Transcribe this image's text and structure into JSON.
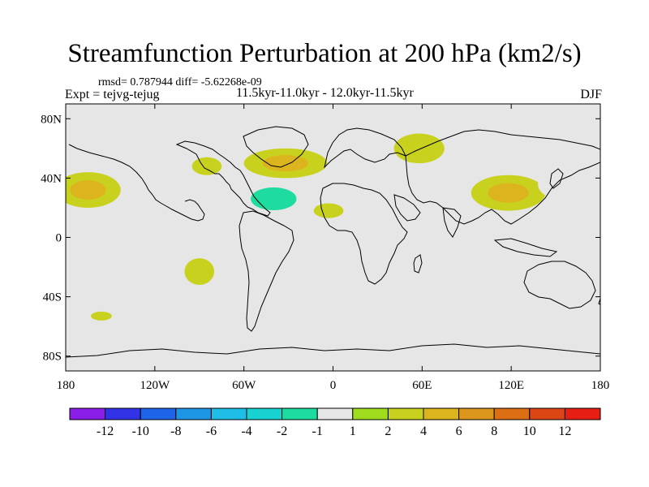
{
  "title": "Streamfunction Perturbation at 200 hPa (km2/s)",
  "subtitle_left": "rmsd= 0.787944 diff= -5.62268e-09",
  "subtitle_center": "11.5kyr-11.0kyr - 12.0kyr-11.5kyr",
  "experiment": "Expt = tejvg-tejug",
  "season": "DJF",
  "colors": {
    "ocean_background": "#e6e6e6",
    "coastline": "#000000"
  },
  "chart_data": {
    "type": "heatmap",
    "title": "Streamfunction Perturbation at 200 hPa (km2/s)",
    "projection": "cylindrical equidistant",
    "lon_range": [
      -180,
      180
    ],
    "lat_range": [
      -90,
      90
    ],
    "x_ticks": [
      {
        "value": -180,
        "label": "180"
      },
      {
        "value": -120,
        "label": "120W"
      },
      {
        "value": -60,
        "label": "60W"
      },
      {
        "value": 0,
        "label": "0"
      },
      {
        "value": 60,
        "label": "60E"
      },
      {
        "value": 120,
        "label": "120E"
      },
      {
        "value": 180,
        "label": "180"
      }
    ],
    "y_ticks": [
      {
        "value": 80,
        "label": "80N"
      },
      {
        "value": 40,
        "label": "40N"
      },
      {
        "value": 0,
        "label": "0"
      },
      {
        "value": -40,
        "label": "40S"
      },
      {
        "value": -80,
        "label": "80S"
      }
    ],
    "colorbar": {
      "colors": [
        "#8a1ee6",
        "#3232e6",
        "#1e64e6",
        "#1e96e6",
        "#1ebee6",
        "#18d2d2",
        "#1edca0",
        "#e6e6e6",
        "#a0dc1e",
        "#c8d21e",
        "#dcb41e",
        "#dc961e",
        "#dc6e14",
        "#dc4614",
        "#e61e14"
      ],
      "tick_labels": [
        "-12",
        "-10",
        "-8",
        "-6",
        "-4",
        "-2",
        "-1",
        "1",
        "2",
        "4",
        "6",
        "8",
        "10",
        "12"
      ]
    },
    "features": [
      {
        "name": "north-pacific-east-positive",
        "lon": -165,
        "lat": 32,
        "rx": 22,
        "ry": 12,
        "levels": [
          2,
          4
        ]
      },
      {
        "name": "north-pacific-west-negative",
        "lon": 170,
        "lat": 48,
        "rx": 14,
        "ry": 10,
        "levels": [
          -1
        ]
      },
      {
        "name": "north-america-west-negative",
        "lon": -125,
        "lat": 40,
        "rx": 11,
        "ry": 15,
        "levels": [
          -1
        ]
      },
      {
        "name": "north-america-east-positive",
        "lon": -85,
        "lat": 48,
        "rx": 10,
        "ry": 6,
        "levels": [
          2
        ]
      },
      {
        "name": "north-atlantic-north-positive",
        "lon": -32,
        "lat": 50,
        "rx": 28,
        "ry": 10,
        "levels": [
          2,
          4
        ]
      },
      {
        "name": "north-atlantic-south-negative",
        "lon": -40,
        "lat": 26,
        "rx": 28,
        "ry": 14,
        "levels": [
          -1,
          -2
        ]
      },
      {
        "name": "africa-north-positive",
        "lon": -3,
        "lat": 18,
        "rx": 10,
        "ry": 5,
        "levels": [
          2
        ]
      },
      {
        "name": "europe-mediterranean-negative",
        "lon": 25,
        "lat": 40,
        "rx": 14,
        "ry": 15,
        "levels": [
          -1
        ]
      },
      {
        "name": "asia-central-positive",
        "lon": 58,
        "lat": 60,
        "rx": 17,
        "ry": 10,
        "levels": [
          2
        ]
      },
      {
        "name": "siberia-east-negative",
        "lon": 140,
        "lat": 58,
        "rx": 40,
        "ry": 10,
        "levels": [
          -1
        ]
      },
      {
        "name": "east-asia-positive",
        "lon": 118,
        "lat": 30,
        "rx": 25,
        "ry": 12,
        "levels": [
          2,
          4
        ]
      },
      {
        "name": "north-pacific-central-negative",
        "lon": 152,
        "lat": 36,
        "rx": 14,
        "ry": 10,
        "levels": [
          -1
        ]
      },
      {
        "name": "east-pacific-equator-negative",
        "lon": -100,
        "lat": 1,
        "rx": 6,
        "ry": 6,
        "levels": [
          -1
        ]
      },
      {
        "name": "south-pacific-positive",
        "lon": -90,
        "lat": -23,
        "rx": 10,
        "ry": 9,
        "levels": [
          2
        ]
      },
      {
        "name": "south-pacific-south-negative",
        "lon": -103,
        "lat": -48,
        "rx": 6,
        "ry": 3,
        "levels": [
          -1
        ]
      },
      {
        "name": "southern-ocean-positive",
        "lon": -156,
        "lat": -53,
        "rx": 7,
        "ry": 3,
        "levels": [
          2
        ]
      },
      {
        "name": "indian-ocean-south-negative",
        "lon": 90,
        "lat": -31,
        "rx": 7,
        "ry": 4,
        "levels": [
          -1
        ]
      },
      {
        "name": "australia-east-negative",
        "lon": 163,
        "lat": -31,
        "rx": 13,
        "ry": 10,
        "levels": [
          -1
        ]
      }
    ]
  }
}
